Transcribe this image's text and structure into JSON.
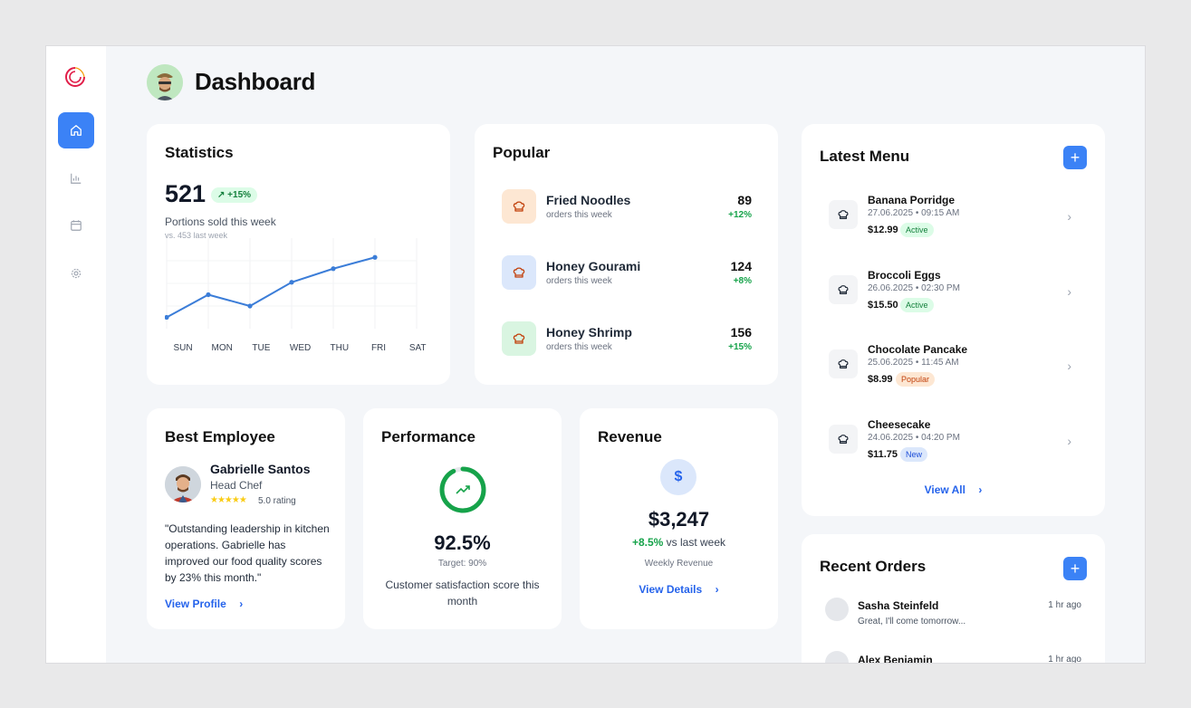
{
  "header": {
    "title": "Dashboard"
  },
  "sidebar": {
    "items": [
      {
        "name": "home",
        "active": true
      },
      {
        "name": "analytics",
        "active": false
      },
      {
        "name": "calendar",
        "active": false
      },
      {
        "name": "settings",
        "active": false
      }
    ]
  },
  "statistics": {
    "title": "Statistics",
    "value": "521",
    "change": "+15%",
    "subtitle": "Portions sold this week",
    "comparison": "vs. 453 last week"
  },
  "chart_data": {
    "type": "line",
    "categories": [
      "SUN",
      "MON",
      "TUE",
      "WED",
      "THU",
      "FRI",
      "SAT"
    ],
    "values": [
      1.0,
      3.0,
      2.0,
      4.1,
      5.3,
      6.3,
      null
    ],
    "ylim": [
      0,
      8
    ],
    "grid": true,
    "color": "#3b7dd8"
  },
  "popular": {
    "title": "Popular",
    "items": [
      {
        "name": "Fried Noodles",
        "sub": "orders this week",
        "value": "89",
        "change": "+12%",
        "bg": "#fde7d3"
      },
      {
        "name": "Honey Gourami",
        "sub": "orders this week",
        "value": "124",
        "change": "+8%",
        "bg": "#dbe7fb"
      },
      {
        "name": "Honey Shrimp",
        "sub": "orders this week",
        "value": "156",
        "change": "+15%",
        "bg": "#d9f5e1"
      }
    ]
  },
  "latest_menu": {
    "title": "Latest Menu",
    "add_label": "+",
    "view_all": "View All",
    "items": [
      {
        "name": "Banana Porridge",
        "date": "27.06.2025 • 09:15 AM",
        "price": "$12.99",
        "badge": "Active"
      },
      {
        "name": "Broccoli Eggs",
        "date": "26.06.2025 • 02:30 PM",
        "price": "$15.50",
        "badge": "Active"
      },
      {
        "name": "Chocolate Pancake",
        "date": "25.06.2025 • 11:45 AM",
        "price": "$8.99",
        "badge": "Popular"
      },
      {
        "name": "Cheesecake",
        "date": "24.06.2025 • 04:20 PM",
        "price": "$11.75",
        "badge": "New"
      }
    ]
  },
  "best_employee": {
    "title": "Best Employee",
    "name": "Gabrielle Santos",
    "role": "Head Chef",
    "stars": "★★★★★",
    "rating": "5.0 rating",
    "quote": "\"Outstanding leadership in kitchen operations. Gabrielle has improved our food quality scores by 23% this month.\"",
    "link": "View Profile"
  },
  "performance": {
    "title": "Performance",
    "value": "92.5%",
    "level": 0.925,
    "target": "Target: 90%",
    "description": "Customer satisfaction score this month"
  },
  "revenue": {
    "title": "Revenue",
    "icon": "$",
    "value": "$3,247",
    "change": "+8.5%",
    "change_suffix": "vs last week",
    "label": "Weekly Revenue",
    "link": "View Details"
  },
  "recent_orders": {
    "title": "Recent Orders",
    "add_label": "+",
    "items": [
      {
        "name": "Sasha Steinfeld",
        "message": "Great, I'll come tomorrow...",
        "time": "1 hr ago"
      },
      {
        "name": "Alex Benjamin",
        "time": "1 hr ago"
      }
    ]
  }
}
